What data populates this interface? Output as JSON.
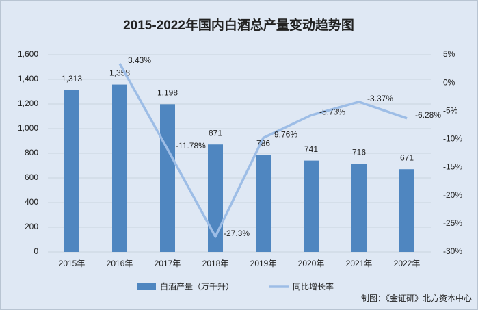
{
  "chart_data": {
    "type": "combo",
    "title": "2015-2022年国内白酒总产量变动趋势图",
    "categories": [
      "2015年",
      "2016年",
      "2017年",
      "2018年",
      "2019年",
      "2020年",
      "2021年",
      "2022年"
    ],
    "series": [
      {
        "name": "白酒产量（万千升）",
        "type": "bar",
        "color": "#4f86c0",
        "axis": "y",
        "values": [
          1313,
          1358,
          1198,
          871,
          786,
          741,
          716,
          671
        ],
        "value_labels": [
          "1,313",
          "1,358",
          "1,198",
          "871",
          "786",
          "741",
          "716",
          "671"
        ]
      },
      {
        "name": "同比增长率",
        "type": "line",
        "color": "#9dbde6",
        "axis": "y2",
        "values": [
          null,
          3.43,
          -11.78,
          -27.3,
          -9.76,
          -5.73,
          -3.37,
          -6.28
        ],
        "value_labels": [
          null,
          "3.43%",
          "-11.78%",
          "-27.3%",
          "-9.76%",
          "-5.73%",
          "-3.37%",
          "-6.28%"
        ]
      }
    ],
    "ylim": [
      0,
      1600
    ],
    "yticks": [
      0,
      200,
      400,
      600,
      800,
      {
        "value": 1000,
        "label": "1,000"
      },
      {
        "value": 1200,
        "label": "1,200"
      },
      {
        "value": 1400,
        "label": "1,400"
      },
      {
        "value": 1600,
        "label": "1,600"
      }
    ],
    "y2lim": [
      -30,
      5
    ],
    "y2ticks": [
      {
        "value": -30,
        "label": "-30%"
      },
      {
        "value": -25,
        "label": "-25%"
      },
      {
        "value": -20,
        "label": "-20%"
      },
      {
        "value": -15,
        "label": "-15%"
      },
      {
        "value": -10,
        "label": "-10%"
      },
      {
        "value": -5,
        "label": "-5%"
      },
      {
        "value": 0,
        "label": "0%"
      },
      {
        "value": 5,
        "label": "5%"
      }
    ],
    "grid": true,
    "legend": "bottom",
    "source": "制图：《金证研》北方资本中心"
  }
}
